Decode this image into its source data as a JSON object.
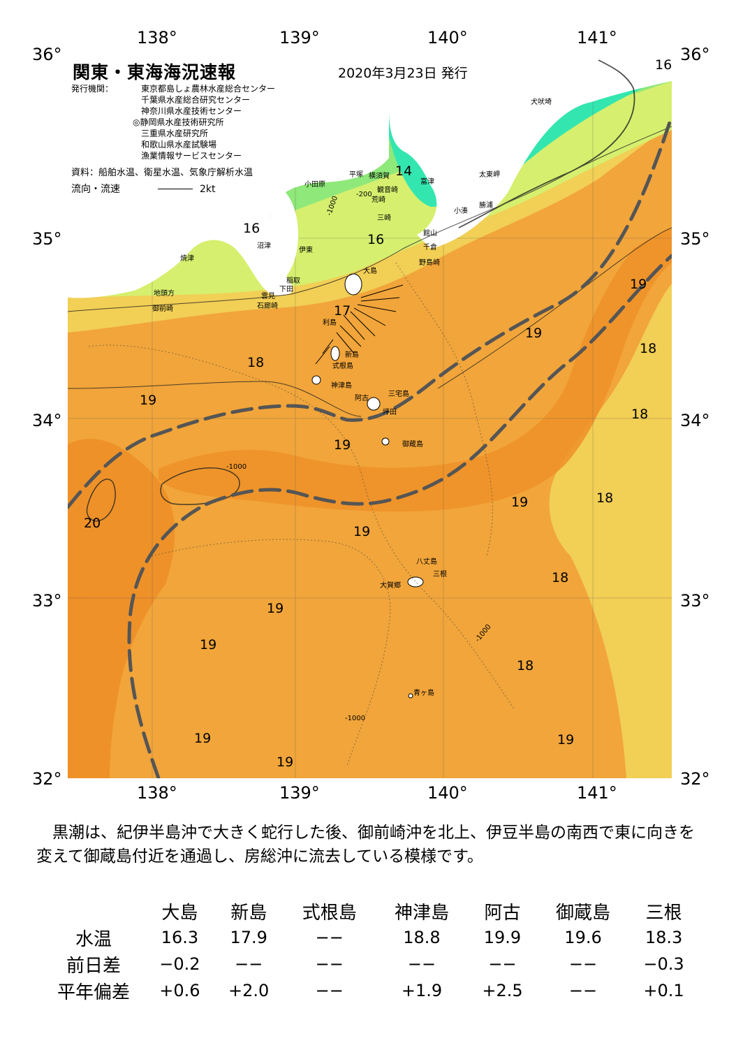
{
  "map": {
    "title": "関東・東海海況速報",
    "date": "2020年3月23日 発行",
    "agencies_label": "発行機関：",
    "agencies": [
      "東京都島しょ農林水産総合センター",
      "千葉県水産総合研究センター",
      "神奈川県水産技術センター",
      "◎静岡県水産技術研究所",
      "三重県水産研究所",
      "和歌山県水産試験場",
      "漁業情報サービスセンター"
    ],
    "sources": "資料：船舶水温、衛星水温、気象庁解析水温",
    "current_label": "流向・流速",
    "current_scale": "2kt",
    "lon_labels": [
      "138°",
      "139°",
      "140°",
      "141°"
    ],
    "lat_labels": [
      "36°",
      "35°",
      "34°",
      "33°",
      "32°"
    ],
    "isotherm_labels": [
      "14",
      "16",
      "16",
      "16",
      "17",
      "18",
      "18",
      "18",
      "18",
      "18",
      "18",
      "19",
      "19",
      "19",
      "19",
      "19",
      "19",
      "19",
      "19",
      "19",
      "20"
    ],
    "depth_labels": [
      "-1000",
      "-200"
    ],
    "place_names": [
      "犬吠埼",
      "太東岬",
      "勝浦",
      "小湊",
      "富津",
      "横須賀",
      "観音崎",
      "荒崎",
      "三崎",
      "平塚",
      "小田原",
      "館山",
      "千倉",
      "野島崎",
      "沼津",
      "伊東",
      "焼津",
      "稲取",
      "下田",
      "雲見",
      "石廊崎",
      "地頭方",
      "御前崎",
      "大島",
      "利島",
      "新島",
      "式根島",
      "神津島",
      "三宅島",
      "阿古",
      "坪田",
      "御蔵島",
      "八丈島",
      "三根",
      "大賀郷",
      "青ヶ島"
    ],
    "colors": {
      "land": "#ffffff",
      "temp_14": "#33e6b0",
      "temp_16": "#8fe87a",
      "temp_17": "#d6ef6e",
      "temp_18": "#f2cf55",
      "temp_19": "#f1a53a",
      "temp_20": "#ee9128",
      "kuroshio_axis": "#555555"
    }
  },
  "summary": "黒潮は、紀伊半島沖で大きく蛇行した後、御前崎沖を北上、伊豆半島の南西で東に向きを変えて御蔵島付近を通過し、房総沖に流去している模様です。",
  "table": {
    "headers": [
      "大島",
      "新島",
      "式根島",
      "神津島",
      "阿古",
      "御蔵島",
      "三根"
    ],
    "rows": [
      {
        "label": "水温",
        "values": [
          "16.3",
          "17.9",
          "−−",
          "18.8",
          "19.9",
          "19.6",
          "18.3"
        ]
      },
      {
        "label": "前日差",
        "values": [
          "−0.2",
          "−−",
          "−−",
          "−−",
          "−−",
          "−−",
          "−0.3"
        ]
      },
      {
        "label": "平年偏差",
        "values": [
          "+0.6",
          "+2.0",
          "−−",
          "+1.9",
          "+2.5",
          "−−",
          "+0.1"
        ]
      }
    ]
  }
}
